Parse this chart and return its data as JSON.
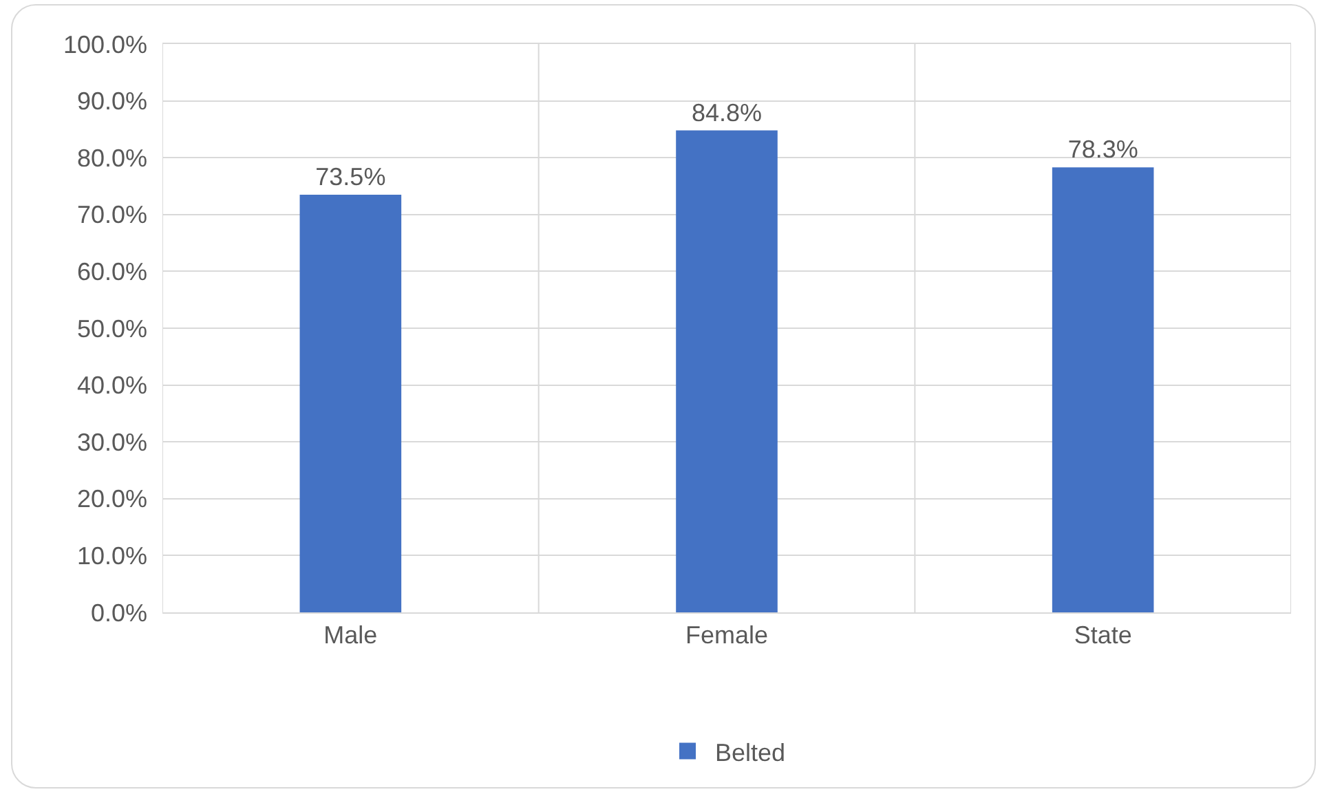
{
  "chart_data": {
    "type": "bar",
    "categories": [
      "Male",
      "Female",
      "State"
    ],
    "series": [
      {
        "name": "Belted",
        "color": "#4472c4",
        "values": [
          73.5,
          84.8,
          78.3
        ],
        "value_labels": [
          "73.5%",
          "84.8%",
          "78.3%"
        ]
      }
    ],
    "ylim": [
      0,
      100
    ],
    "yticks": [
      {
        "value": 0,
        "label": "0.0%"
      },
      {
        "value": 10,
        "label": "10.0%"
      },
      {
        "value": 20,
        "label": "20.0%"
      },
      {
        "value": 30,
        "label": "30.0%"
      },
      {
        "value": 40,
        "label": "40.0%"
      },
      {
        "value": 50,
        "label": "50.0%"
      },
      {
        "value": 60,
        "label": "60.0%"
      },
      {
        "value": 70,
        "label": "70.0%"
      },
      {
        "value": 80,
        "label": "80.0%"
      },
      {
        "value": 90,
        "label": "90.0%"
      },
      {
        "value": 100,
        "label": "100.0%"
      }
    ],
    "grid": true,
    "legend": "bottom"
  }
}
